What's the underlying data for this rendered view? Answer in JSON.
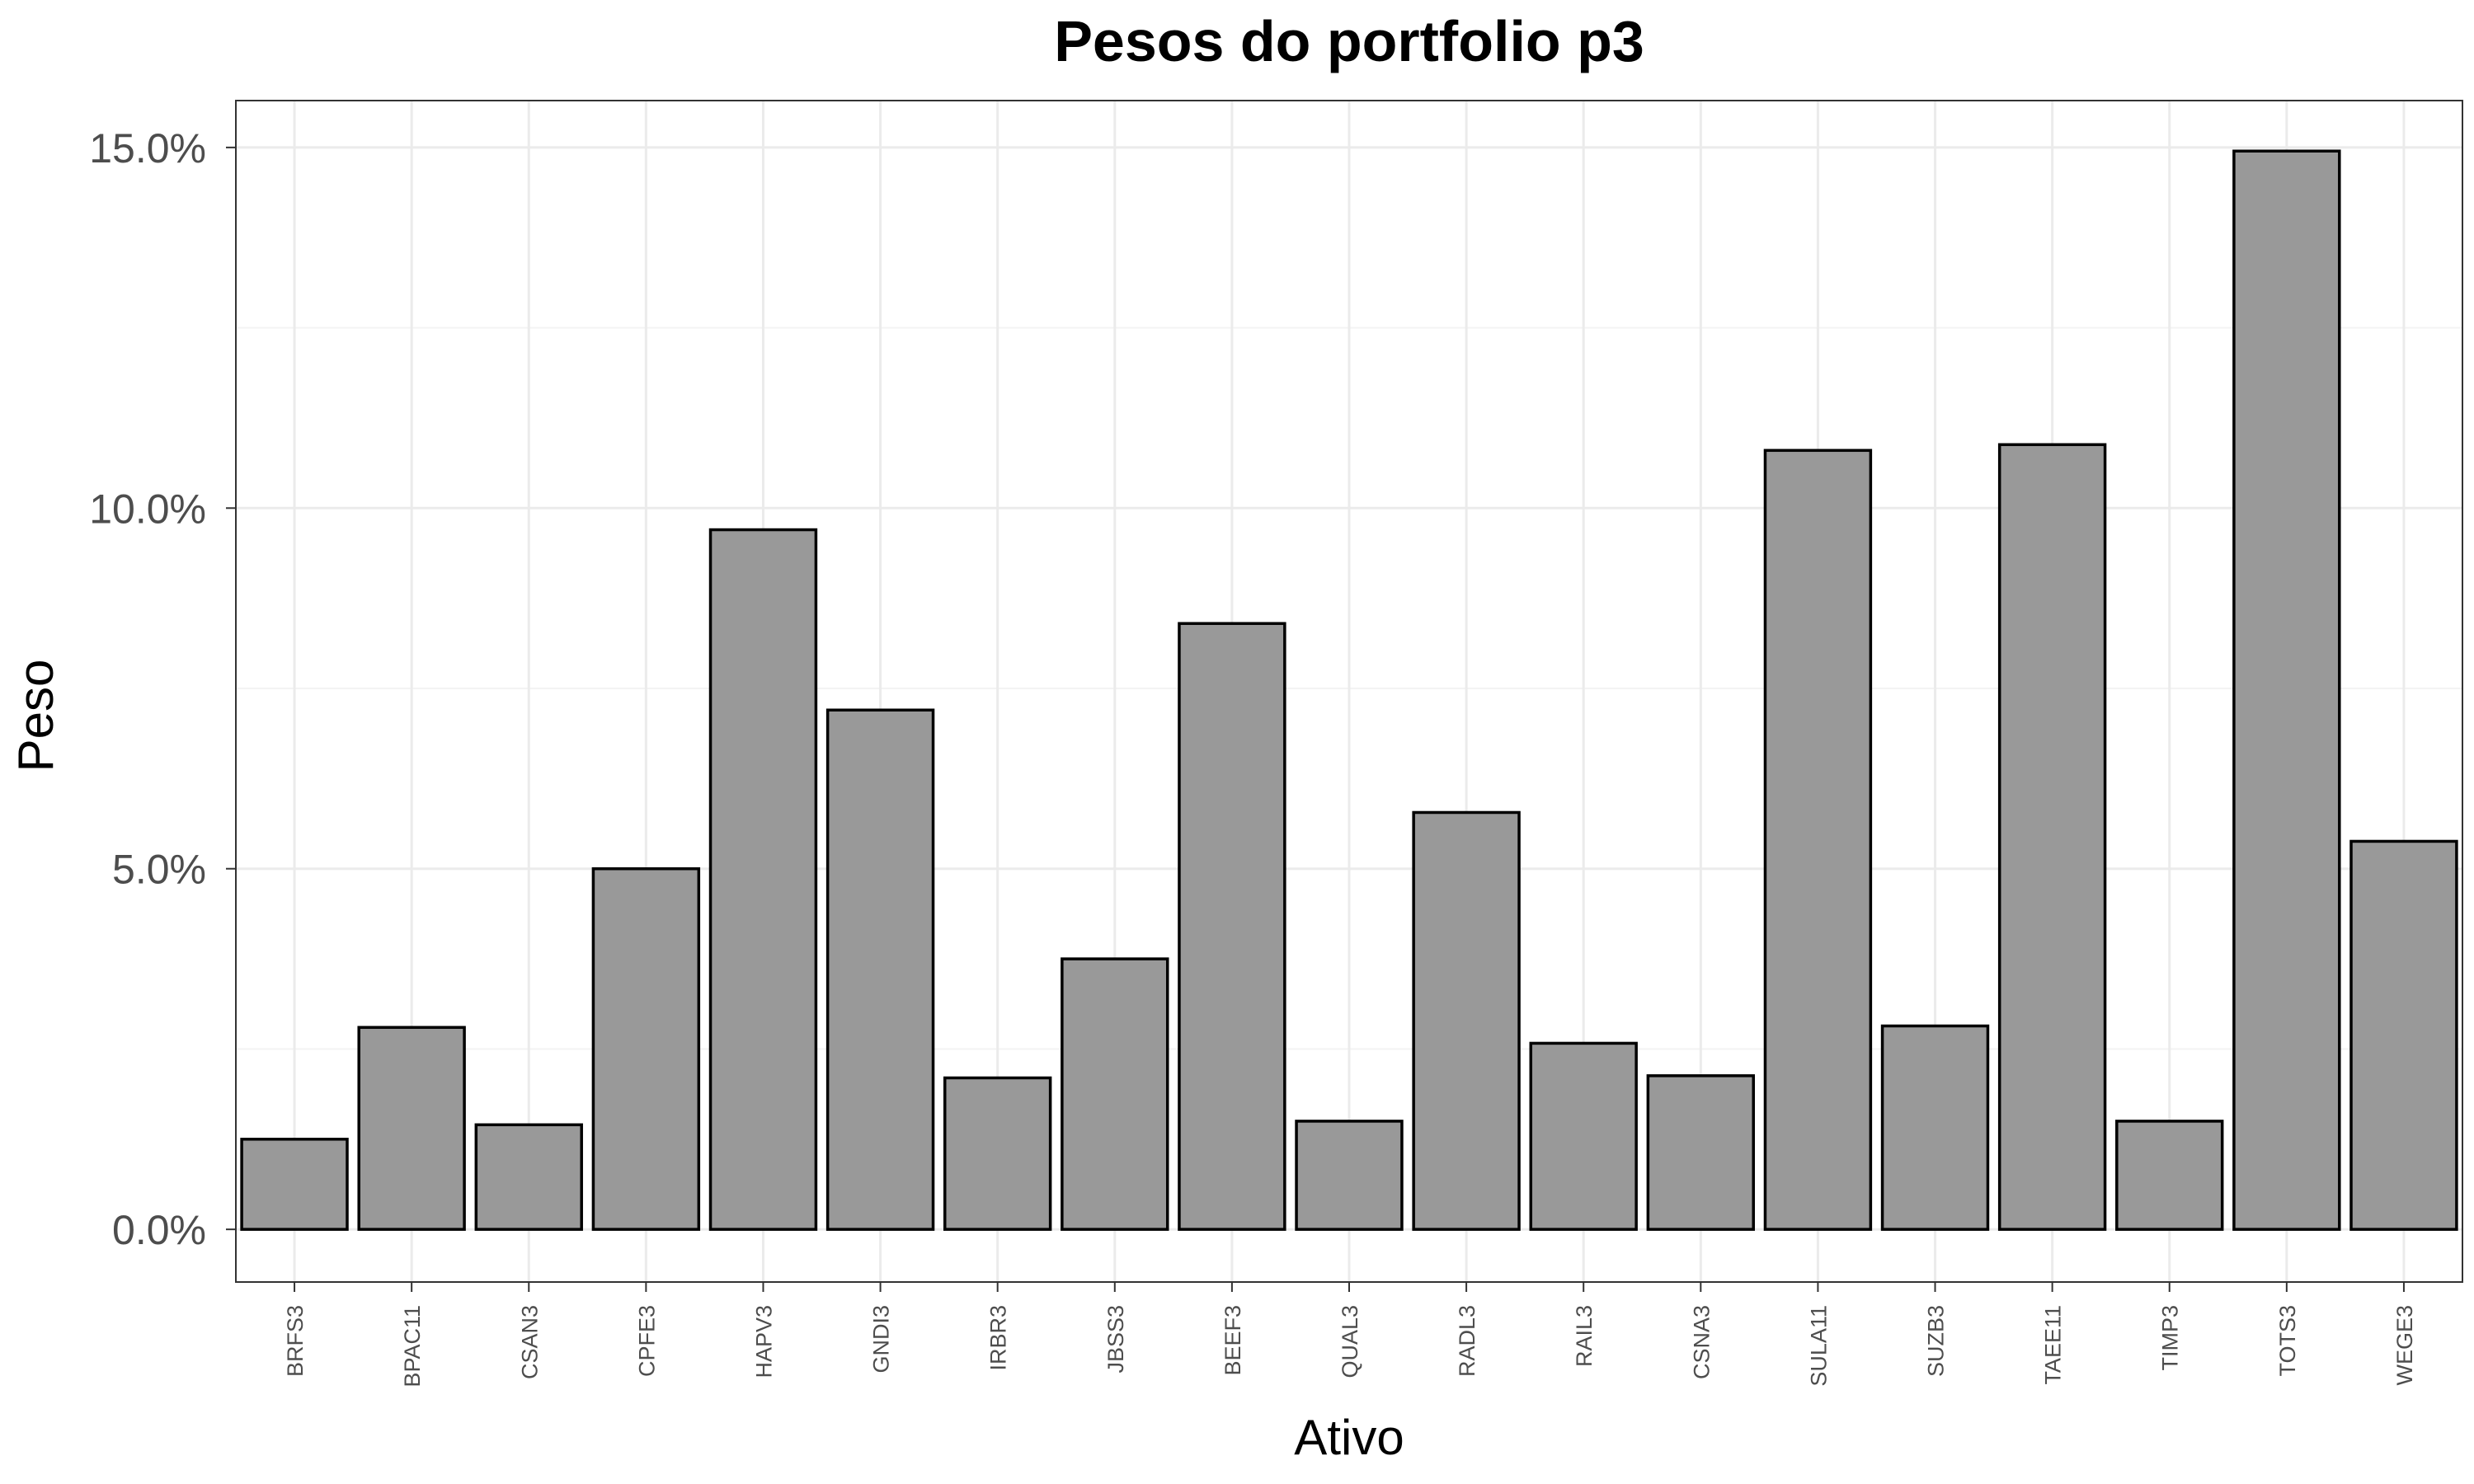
{
  "chart_data": {
    "type": "bar",
    "title": "Pesos do portfolio p3",
    "xlabel": "Ativo",
    "ylabel": "Peso",
    "categories": [
      "BRFS3",
      "BPAC11",
      "CSAN3",
      "CPFE3",
      "HAPV3",
      "GNDI3",
      "IRBR3",
      "JBSS3",
      "BEEF3",
      "QUAL3",
      "RADL3",
      "RAIL3",
      "CSNA3",
      "SULA11",
      "SUZB3",
      "TAEE11",
      "TIMP3",
      "TOTS3",
      "WEGE3"
    ],
    "values": [
      1.25,
      2.8,
      1.45,
      5.0,
      9.7,
      7.2,
      2.1,
      3.75,
      8.4,
      1.5,
      5.78,
      2.58,
      2.13,
      10.8,
      2.82,
      10.88,
      1.5,
      14.95,
      5.38
    ],
    "value_unit": "%",
    "ylim": [
      -0.73,
      15.65
    ],
    "y_ticks": [
      0,
      5,
      10,
      15
    ],
    "y_tick_labels": [
      "0.0%",
      "5.0%",
      "10.0%",
      "15.0%"
    ],
    "grid": true,
    "legend": "none",
    "colors": {
      "bar_fill": "#999999",
      "bar_stroke": "#000000",
      "grid_major": "#ebebeb",
      "grid_minor": "#f3f3f3",
      "panel_border": "#333333",
      "tick_label": "#4d4d4d"
    }
  }
}
